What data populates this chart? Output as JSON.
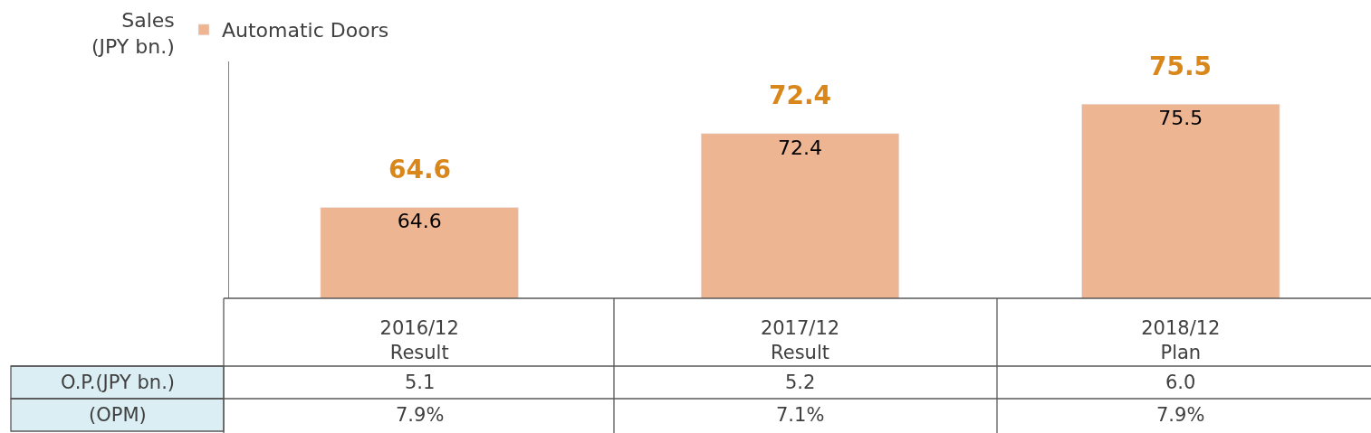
{
  "chart_data": {
    "type": "bar",
    "ylabel": "Sales\n(JPY bn.)",
    "categories": [
      "2016/12\nResult",
      "2017/12\nResult",
      "2018/12\nPlan"
    ],
    "series": [
      {
        "name": "Automatic Doors",
        "color": "#eeb592",
        "values": [
          64.6,
          72.4,
          75.5
        ]
      }
    ],
    "ylim": [
      55,
      80
    ],
    "data_labels": true,
    "legend": "top left",
    "tick_labels": "x",
    "annotations": [
      {
        "text": "64.6",
        "x": "2016/12\nResult",
        "y": 64.6
      },
      {
        "text": "72.4",
        "x": "2017/12\nResult",
        "y": 72.4
      },
      {
        "text": "75.5",
        "x": "2018/12\nPlan",
        "y": 75.5
      },
      "O.P.(JPY bn.)",
      "5.1",
      "5.2",
      "6.0",
      "(OPM)",
      "7.9%",
      "7.1%",
      "7.9%"
    ]
  }
}
